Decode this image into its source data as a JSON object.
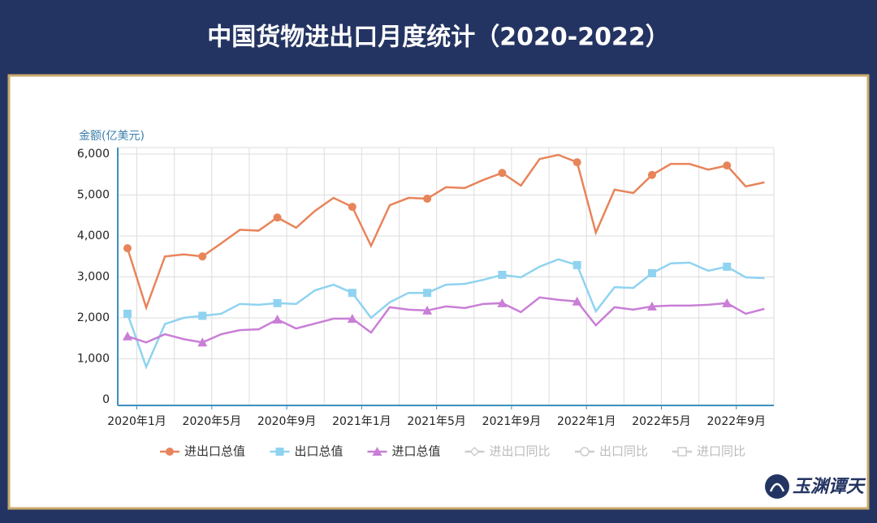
{
  "chart_data": {
    "type": "line",
    "title": "中国货物进出口月度统计（2020-2022）",
    "y_axis_label": "金额(亿美元)",
    "categories": [
      "2020年1月",
      null,
      null,
      null,
      "2020年5月",
      null,
      null,
      null,
      "2020年9月",
      null,
      null,
      null,
      "2021年1月",
      null,
      null,
      null,
      "2021年5月",
      null,
      null,
      null,
      "2021年9月",
      null,
      null,
      null,
      "2022年1月",
      null,
      null,
      null,
      "2022年5月",
      null,
      null,
      null,
      "2022年9月",
      null,
      null
    ],
    "ylim": [
      0,
      6000
    ],
    "yticks": [
      0,
      {
        "value": 1000,
        "label": "1,000"
      },
      {
        "value": 2000,
        "label": "2,000"
      },
      {
        "value": 3000,
        "label": "3,000"
      },
      {
        "value": 4000,
        "label": "4,000"
      },
      {
        "value": 5000,
        "label": "5,000"
      },
      {
        "value": 6000,
        "label": "6,000"
      }
    ],
    "grid": true,
    "series": [
      {
        "name": "进出口总值",
        "color": "#e8845a",
        "marker": "circle",
        "values": [
          3700,
          2250,
          3500,
          3550,
          3500,
          3820,
          4150,
          4130,
          4450,
          4200,
          4610,
          4930,
          4710,
          3760,
          4750,
          4930,
          4910,
          5190,
          5170,
          5370,
          5540,
          5230,
          5880,
          5980,
          5800,
          4080,
          5130,
          5050,
          5490,
          5760,
          5760,
          5620,
          5720,
          5210,
          5310
        ]
      },
      {
        "name": "出口总值",
        "color": "#8fd3f0",
        "marker": "square",
        "values": [
          2100,
          800,
          1850,
          2000,
          2050,
          2100,
          2340,
          2320,
          2360,
          2340,
          2670,
          2810,
          2610,
          2000,
          2380,
          2610,
          2610,
          2810,
          2830,
          2930,
          3050,
          2990,
          3250,
          3430,
          3290,
          2160,
          2750,
          2730,
          3090,
          3330,
          3350,
          3150,
          3250,
          2990,
          2970
        ]
      },
      {
        "name": "进口总值",
        "color": "#c97fd6",
        "marker": "triangle",
        "values": [
          1550,
          1400,
          1600,
          1480,
          1400,
          1600,
          1700,
          1720,
          1960,
          1740,
          1860,
          1980,
          1980,
          1640,
          2260,
          2200,
          2180,
          2280,
          2240,
          2340,
          2360,
          2140,
          2500,
          2440,
          2400,
          1820,
          2260,
          2200,
          2280,
          2300,
          2300,
          2320,
          2360,
          2100,
          2220
        ]
      }
    ],
    "inactive_legend": [
      {
        "name": "进出口同比",
        "marker": "diamond"
      },
      {
        "name": "出口同比",
        "marker": "circle"
      },
      {
        "name": "进口同比",
        "marker": "square"
      }
    ],
    "watermark": "玉渊谭天"
  }
}
